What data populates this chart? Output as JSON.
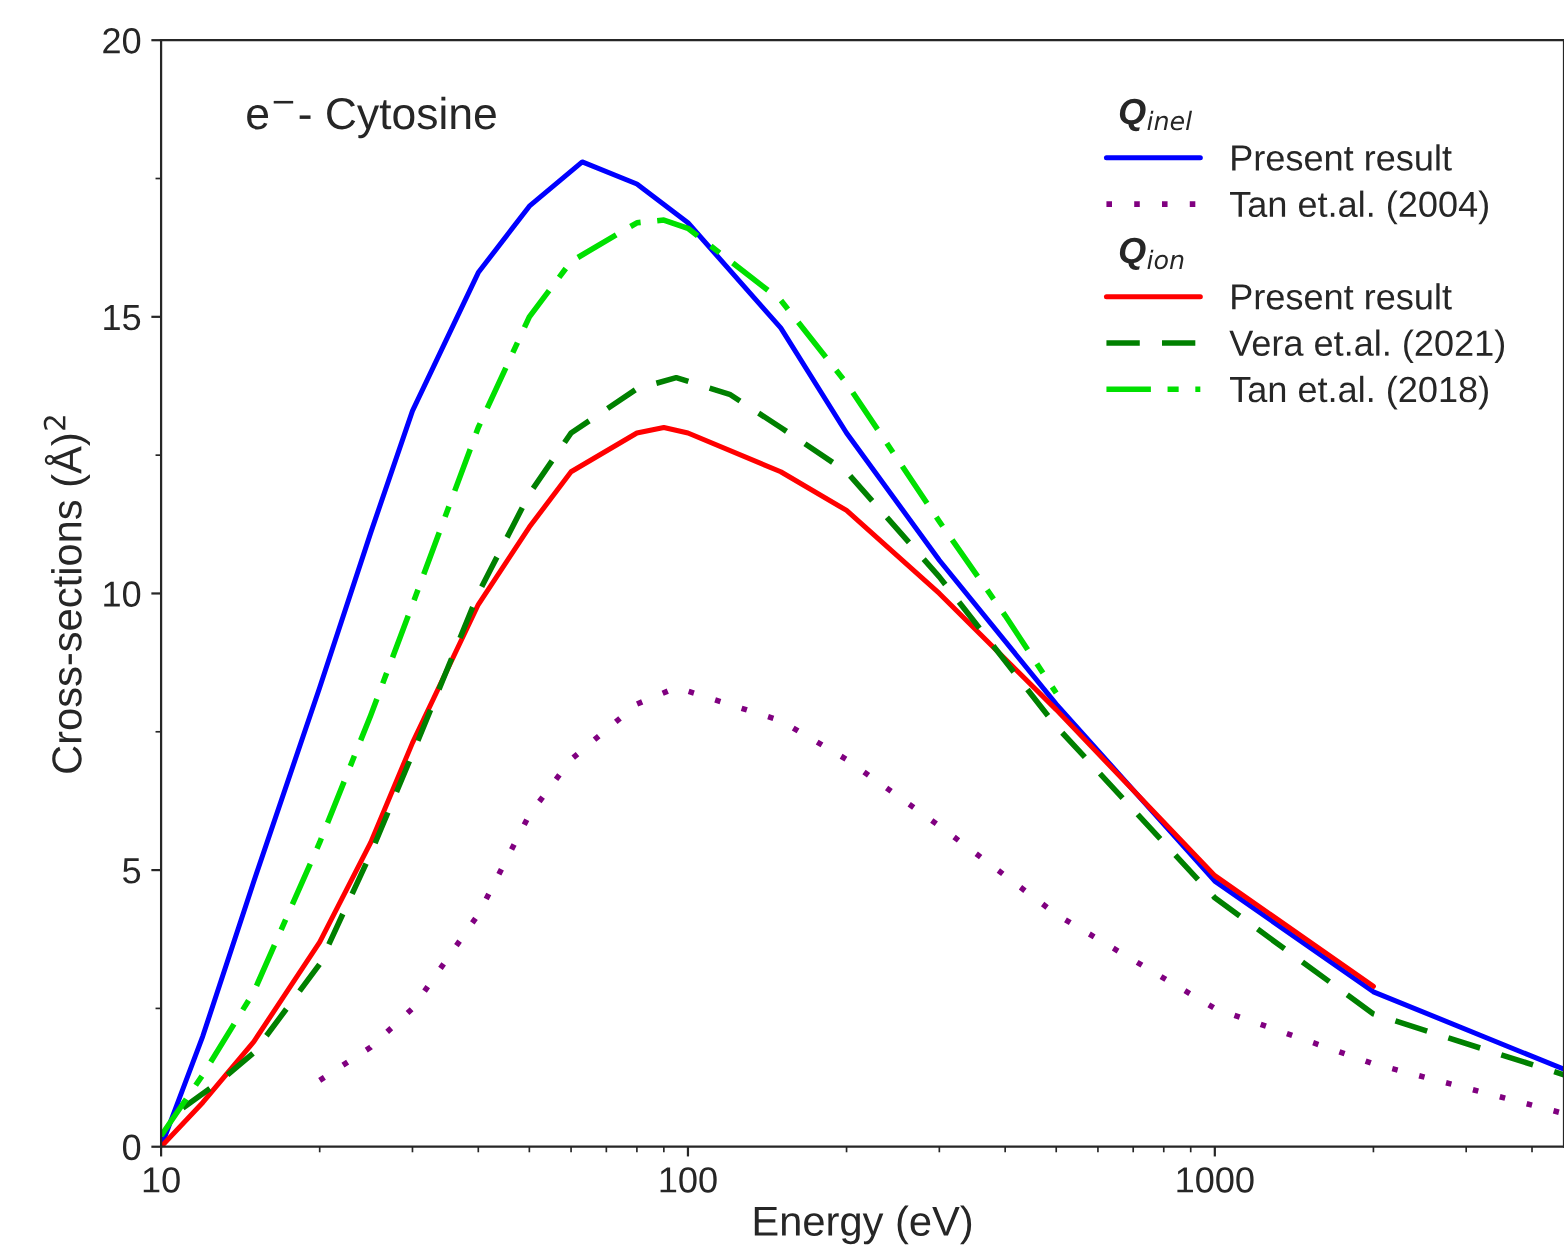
{
  "chart_data": {
    "type": "line",
    "title": "e$^{−}$- Cytosine",
    "xlabel": "Energy (eV)",
    "ylabel": "Cross-sections (Å)$^{2}$",
    "log": "x",
    "xlim": [
      10,
      4600
    ],
    "xticks": [
      10,
      100,
      1000
    ],
    "ylim": [
      0,
      20
    ],
    "yticks": [
      0,
      5,
      10,
      15,
      20
    ],
    "grid": false,
    "legend": "top right",
    "annotations": [
      "Q$_{inel}$",
      "Q$_{ion}$"
    ],
    "series": [
      {
        "name": "Present result",
        "color": "#0000ff",
        "line_style": "solid",
        "x": [
          10,
          12,
          15,
          20,
          25,
          30,
          40,
          50,
          63,
          80,
          100,
          150,
          200,
          300,
          500,
          1000,
          2000,
          4600
        ],
        "values": [
          0,
          2.0,
          4.8,
          8.3,
          11.1,
          13.3,
          15.8,
          17.0,
          17.8,
          17.4,
          16.7,
          14.8,
          12.9,
          10.6,
          8.0,
          4.8,
          2.8,
          1.4
        ]
      },
      {
        "name": "Tan et.al. (2004)",
        "color": "#800080",
        "line_style": "dotted",
        "x": [
          20,
          25,
          30,
          40,
          50,
          60,
          80,
          95,
          150,
          200,
          300,
          500,
          1000,
          2000,
          4600
        ],
        "values": [
          1.2,
          1.8,
          2.5,
          4.2,
          6.0,
          7.0,
          8.0,
          8.3,
          7.7,
          7.0,
          5.8,
          4.2,
          2.5,
          1.5,
          0.6
        ]
      },
      {
        "name": "Present result",
        "color": "#ff0000",
        "line_style": "solid",
        "x": [
          10,
          12,
          15,
          20,
          25,
          30,
          40,
          50,
          60,
          80,
          90,
          100,
          150,
          200,
          300,
          500,
          1000,
          2000
        ],
        "values": [
          0,
          0.8,
          1.9,
          3.7,
          5.5,
          7.3,
          9.8,
          11.2,
          12.2,
          12.9,
          13.0,
          12.9,
          12.2,
          11.5,
          10.0,
          7.9,
          4.9,
          2.9
        ]
      },
      {
        "name": "Vera et.al. (2021)",
        "color": "#008000",
        "line_style": "dashed",
        "x": [
          11,
          13,
          15,
          20,
          25,
          30,
          40,
          50,
          60,
          80,
          95,
          120,
          150,
          200,
          300,
          500,
          1000,
          2000,
          4600
        ],
        "values": [
          0.7,
          1.2,
          1.7,
          3.3,
          5.3,
          7.1,
          10.0,
          11.8,
          12.9,
          13.7,
          13.9,
          13.6,
          13.0,
          12.2,
          10.3,
          7.6,
          4.5,
          2.4,
          1.3
        ]
      },
      {
        "name": "Tan et.al. (2018)",
        "color": "#00e000",
        "line_style": "dashdot",
        "x": [
          10,
          12,
          15,
          20,
          25,
          30,
          40,
          50,
          60,
          80,
          90,
          100,
          150,
          200,
          300,
          400,
          500
        ],
        "values": [
          0.2,
          1.3,
          2.8,
          5.5,
          7.8,
          9.8,
          13.0,
          15.0,
          16.0,
          16.7,
          16.75,
          16.6,
          15.3,
          13.8,
          11.3,
          9.6,
          8.2
        ]
      }
    ]
  }
}
